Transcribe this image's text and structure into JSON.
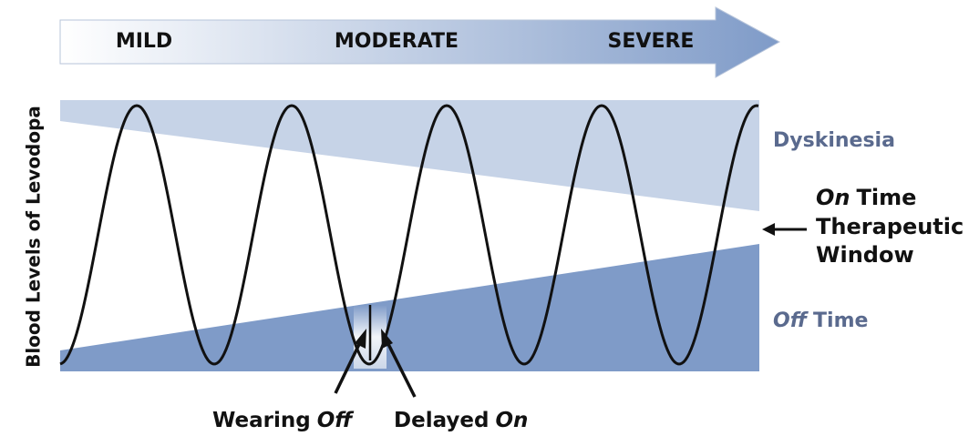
{
  "progression": [
    "MILD",
    "MODERATE",
    "SEVERE"
  ],
  "y_axis_label": "Blood Levels of Levodopa",
  "regions": {
    "dyskinesia": "Dyskinesia",
    "therapeutic": {
      "on": "On",
      "time": "Time",
      "line2": "Therapeutic",
      "line3": "Window"
    },
    "off_time": {
      "off": "Off",
      "time": "Time"
    }
  },
  "annotations": {
    "wearing_off": {
      "text": "Wearing",
      "italic": "Off"
    },
    "delayed_on": {
      "text": "Delayed",
      "italic": "On"
    }
  }
}
